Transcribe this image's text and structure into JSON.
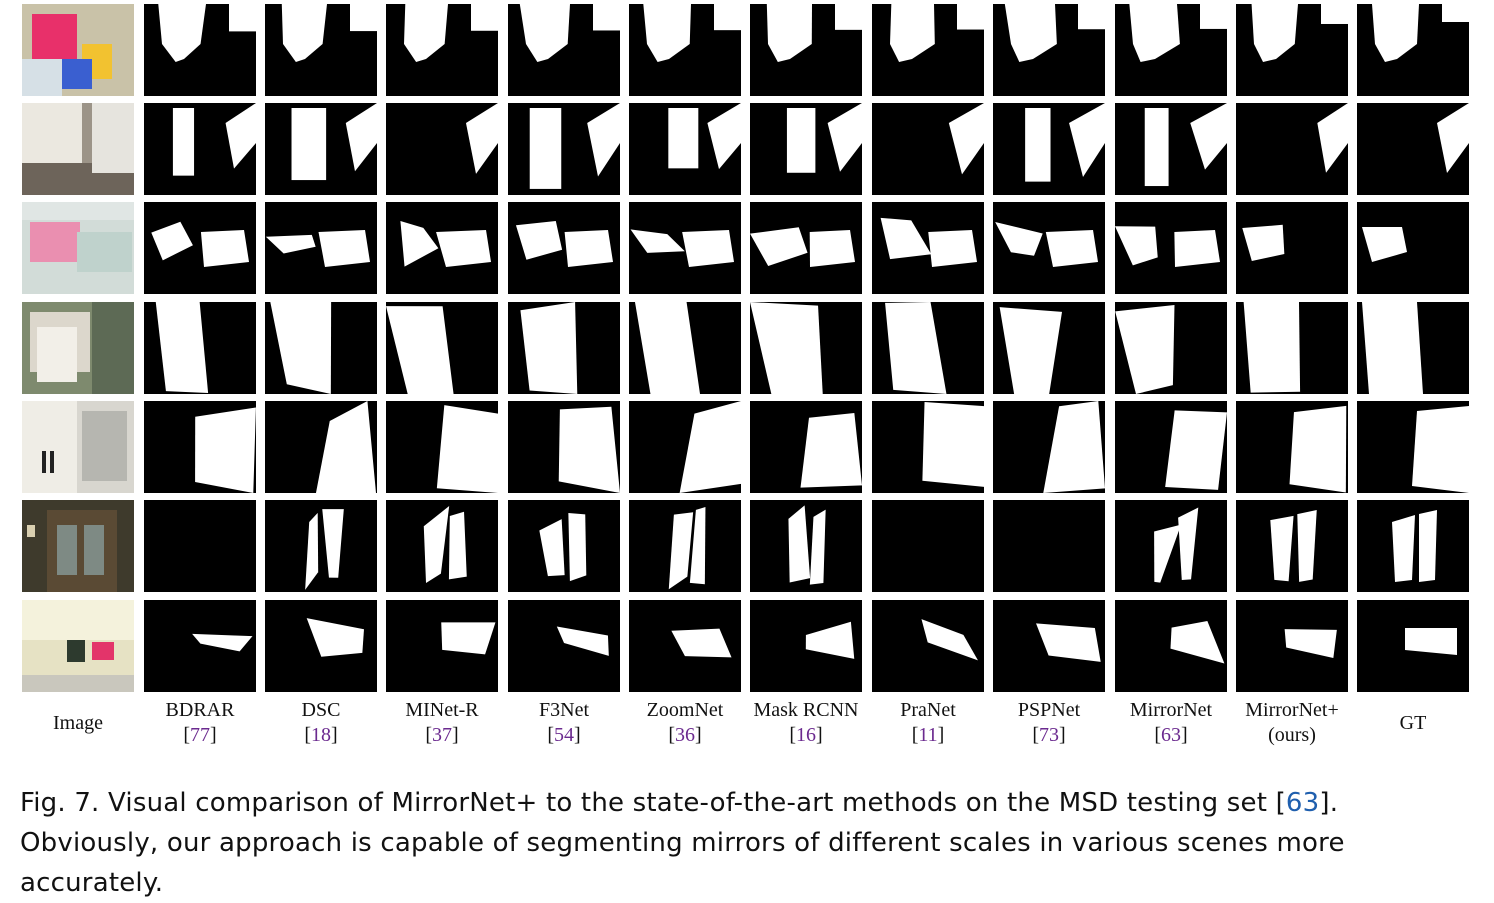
{
  "figure": {
    "columns": [
      {
        "label": "Image",
        "ref": null,
        "sub": null
      },
      {
        "label": "BDRAR",
        "ref": "77",
        "sub": null
      },
      {
        "label": "DSC",
        "ref": "18",
        "sub": null
      },
      {
        "label": "MINet-R",
        "ref": "37",
        "sub": null
      },
      {
        "label": "F3Net",
        "ref": "54",
        "sub": null
      },
      {
        "label": "ZoomNet",
        "ref": "36",
        "sub": null
      },
      {
        "label": "Mask RCNN",
        "ref": "16",
        "sub": null
      },
      {
        "label": "PraNet",
        "ref": "11",
        "sub": null
      },
      {
        "label": "PSPNet",
        "ref": "73",
        "sub": null
      },
      {
        "label": "MirrorNet",
        "ref": "63",
        "sub": null
      },
      {
        "label": "MirrorNet+",
        "ref": null,
        "sub": "(ours)"
      },
      {
        "label": "GT",
        "ref": null,
        "sub": null
      }
    ],
    "rows": 7
  },
  "caption": {
    "prefix": "Fig. 7.  Visual comparison of MirrorNet+ to the state-of-the-art methods on the MSD testing set [",
    "ref": "63",
    "suffix": "]. Obviously, our approach is capable of segmenting mirrors of different scales in various scenes more accurately."
  },
  "colors": {
    "mask_fg": "#ffffff",
    "mask_bg": "#000000",
    "ref_link": "#6b2a8f",
    "caption_ref": "#1f5fae"
  }
}
